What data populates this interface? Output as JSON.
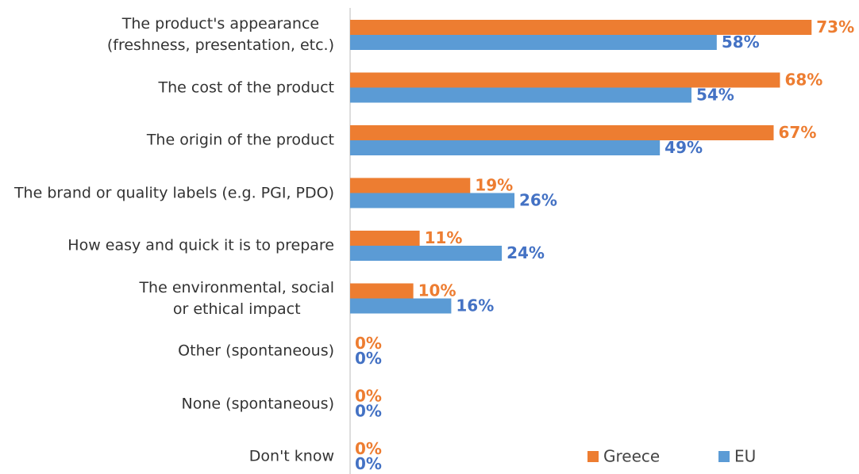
{
  "chart_data": {
    "type": "barh",
    "categories": [
      "The product's appearance\n(freshness, presentation, etc.)",
      "The cost of the product",
      "The origin of the product",
      "The brand or quality labels (e.g. PGI, PDO)",
      "How easy and quick it is to prepare",
      "The environmental, social\nor ethical impact",
      "Other (spontaneous)",
      "None (spontaneous)",
      "Don't know"
    ],
    "series": [
      {
        "name": "Greece",
        "color": "#ED7D31",
        "label_color": "#ED7D31",
        "values": [
          73,
          68,
          67,
          19,
          11,
          10,
          0,
          0,
          0
        ],
        "value_labels": [
          "73%",
          "68%",
          "67%",
          "19%",
          "11%",
          "10%",
          "0%",
          "0%",
          "0%"
        ]
      },
      {
        "name": "EU",
        "color": "#5B9BD5",
        "label_color": "#4472C4",
        "values": [
          58,
          54,
          49,
          26,
          24,
          16,
          0,
          0,
          0
        ],
        "value_labels": [
          "58%",
          "54%",
          "49%",
          "26%",
          "24%",
          "16%",
          "0%",
          "0%",
          "0%"
        ]
      }
    ],
    "xlim": [
      0,
      80
    ],
    "legend": "bottom-right"
  }
}
